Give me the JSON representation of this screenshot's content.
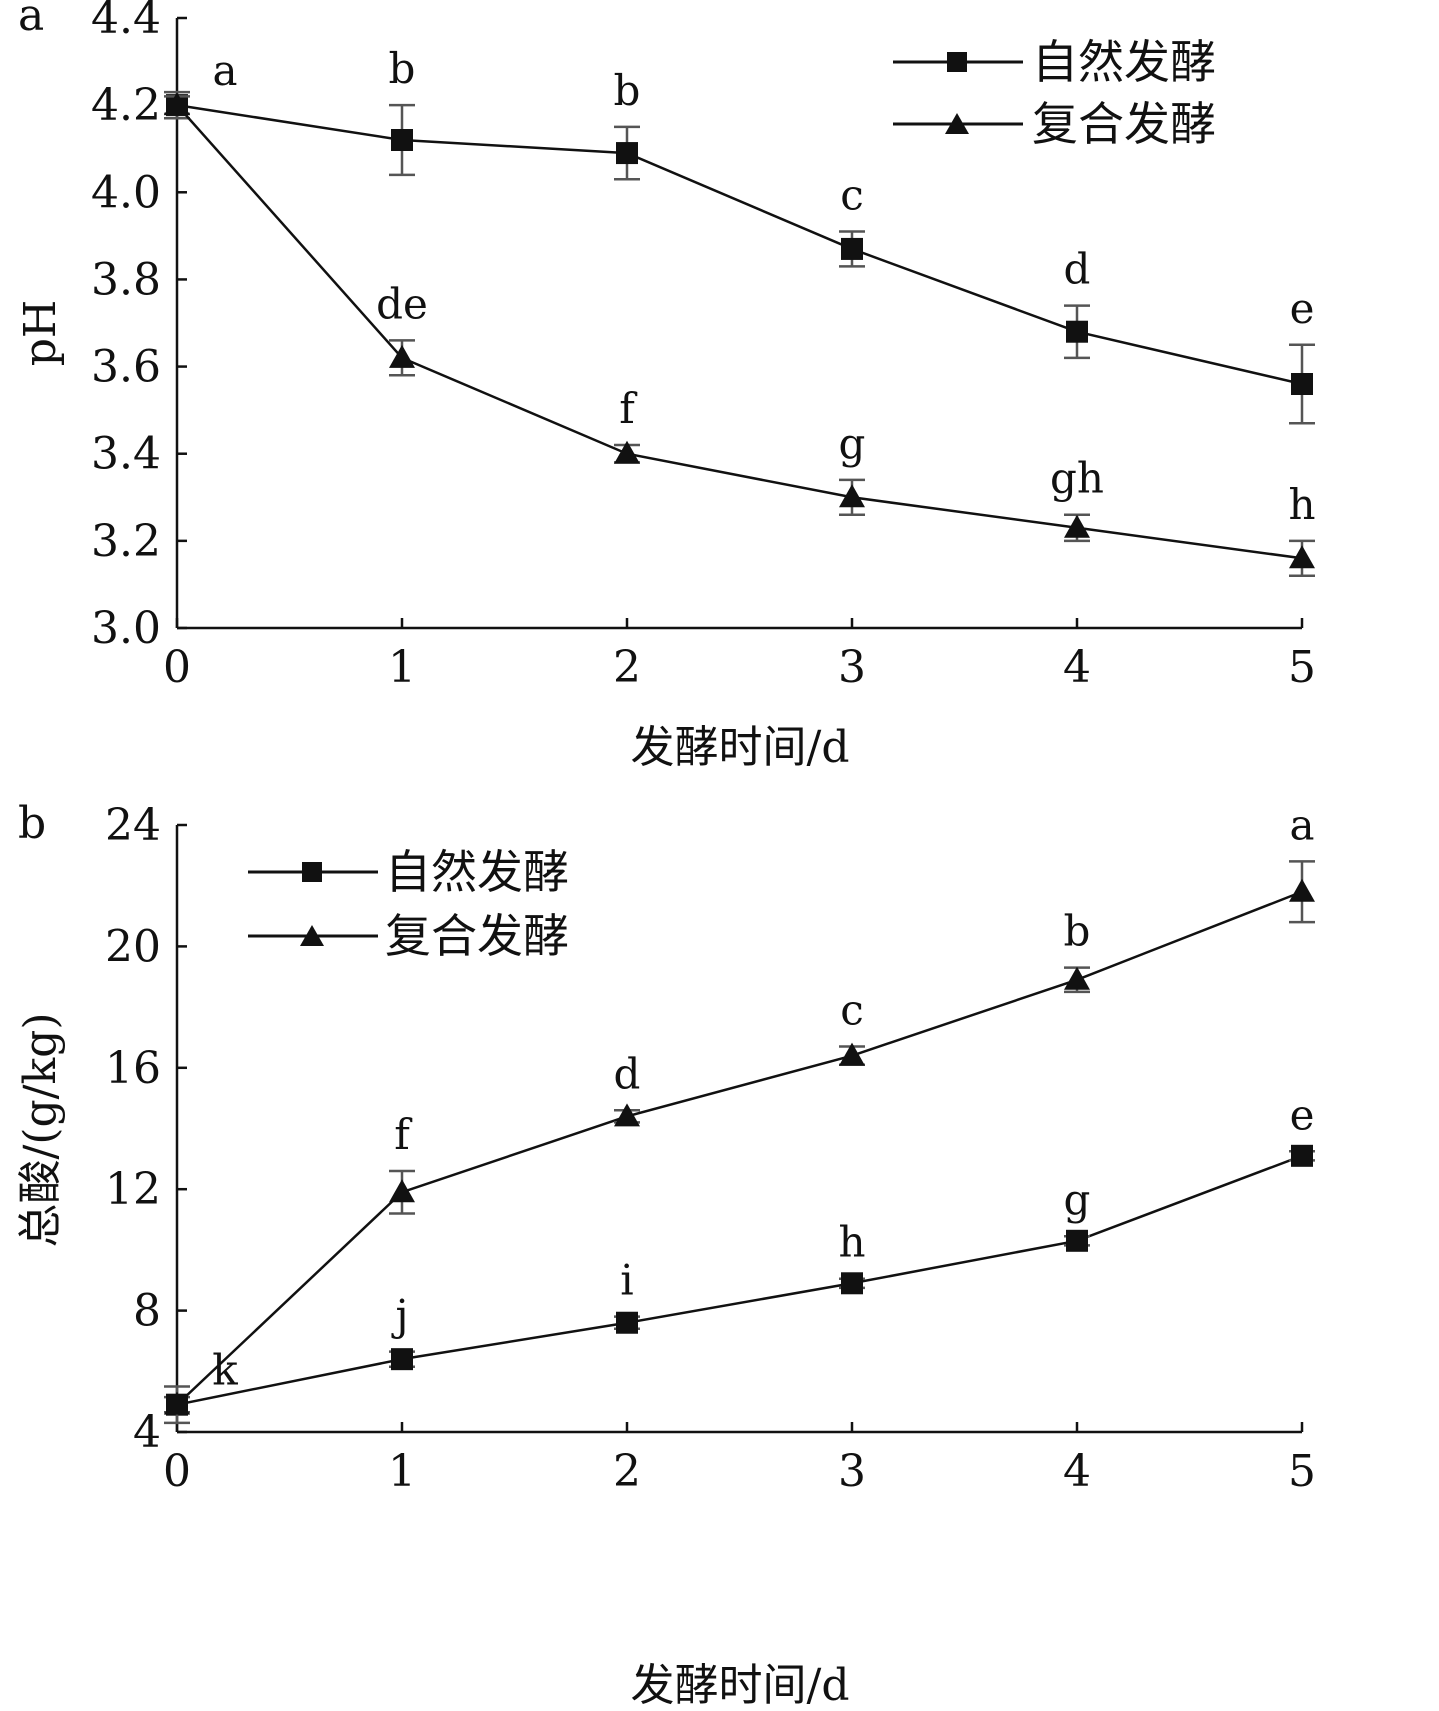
{
  "chart_data": [
    {
      "type": "line",
      "panel_label": "a",
      "xlabel": "发酵时间/d",
      "ylabel": "pH",
      "x": [
        0,
        1,
        2,
        3,
        4,
        5
      ],
      "xticks": [
        "0",
        "1",
        "2",
        "3",
        "4",
        "5"
      ],
      "yticks": [
        "3.0",
        "3.2",
        "3.4",
        "3.6",
        "3.8",
        "4.0",
        "4.2",
        "4.4"
      ],
      "xlim": [
        0,
        5
      ],
      "ylim": [
        3.0,
        4.4
      ],
      "legend_position": "top-right",
      "series": [
        {
          "name": "自然发酵",
          "marker": "square",
          "values": [
            4.2,
            4.12,
            4.09,
            3.87,
            3.68,
            3.56
          ],
          "errors": [
            0.03,
            0.08,
            0.06,
            0.04,
            0.06,
            0.09
          ],
          "letters": [
            "a",
            "b",
            "b",
            "c",
            "d",
            "e"
          ]
        },
        {
          "name": "复合发酵",
          "marker": "triangle",
          "values": [
            4.2,
            3.62,
            3.4,
            3.3,
            3.23,
            3.16
          ],
          "errors": [
            0.02,
            0.04,
            0.02,
            0.04,
            0.03,
            0.04
          ],
          "letters": [
            "",
            "de",
            "f",
            "g",
            "gh",
            "h"
          ]
        }
      ]
    },
    {
      "type": "line",
      "panel_label": "b",
      "xlabel": "发酵时间/d",
      "ylabel": "总酸/(g/kg)",
      "x": [
        0,
        1,
        2,
        3,
        4,
        5
      ],
      "xticks": [
        "0",
        "1",
        "2",
        "3",
        "4",
        "5"
      ],
      "yticks": [
        "4",
        "8",
        "12",
        "16",
        "20",
        "24"
      ],
      "xlim": [
        0,
        5
      ],
      "ylim": [
        4,
        24
      ],
      "legend_position": "top-left",
      "series": [
        {
          "name": "自然发酵",
          "marker": "square",
          "values": [
            4.9,
            6.4,
            7.6,
            8.9,
            10.3,
            13.1
          ],
          "errors": [
            0.25,
            0.25,
            0.2,
            0.15,
            0.15,
            0.15
          ],
          "letters": [
            "k",
            "j",
            "i",
            "h",
            "g",
            "e"
          ]
        },
        {
          "name": "复合发酵",
          "marker": "triangle",
          "values": [
            4.9,
            11.9,
            14.4,
            16.4,
            18.9,
            21.8
          ],
          "errors": [
            0.6,
            0.7,
            0.2,
            0.3,
            0.4,
            1.0
          ],
          "letters": [
            "",
            "f",
            "d",
            "c",
            "b",
            "a"
          ]
        }
      ]
    }
  ]
}
